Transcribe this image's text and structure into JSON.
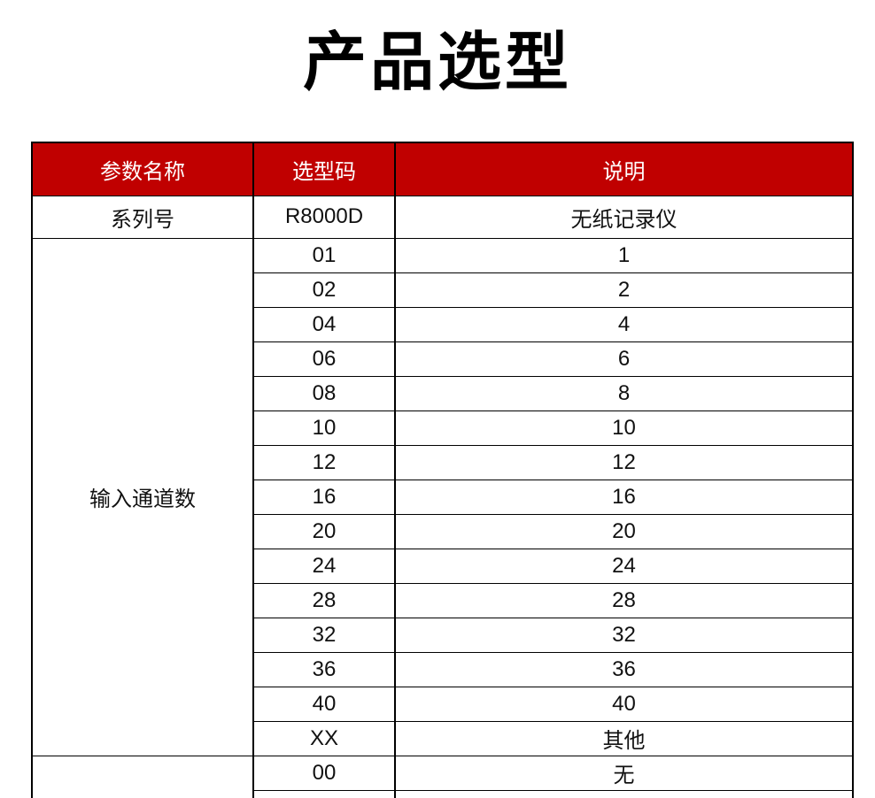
{
  "title": "产品选型",
  "theme": {
    "accent_color": "#c00000",
    "header_text_color": "#ffffff",
    "border_color": "#000000"
  },
  "table": {
    "headers": [
      "参数名称",
      "选型码",
      "说明"
    ],
    "sections": [
      {
        "name": "系列号",
        "rows": [
          [
            "R8000D",
            "无纸记录仪"
          ]
        ]
      },
      {
        "name": "输入通道数",
        "rows": [
          [
            "01",
            "1"
          ],
          [
            "02",
            "2"
          ],
          [
            "04",
            "4"
          ],
          [
            "06",
            "6"
          ],
          [
            "08",
            "8"
          ],
          [
            "10",
            "10"
          ],
          [
            "12",
            "12"
          ],
          [
            "16",
            "16"
          ],
          [
            "20",
            "20"
          ],
          [
            "24",
            "24"
          ],
          [
            "28",
            "28"
          ],
          [
            "32",
            "32"
          ],
          [
            "36",
            "36"
          ],
          [
            "40",
            "40"
          ],
          [
            "XX",
            "其他"
          ]
        ]
      },
      {
        "name": "",
        "rows": [
          [
            "00",
            "无"
          ],
          [
            "",
            ""
          ]
        ]
      }
    ]
  }
}
